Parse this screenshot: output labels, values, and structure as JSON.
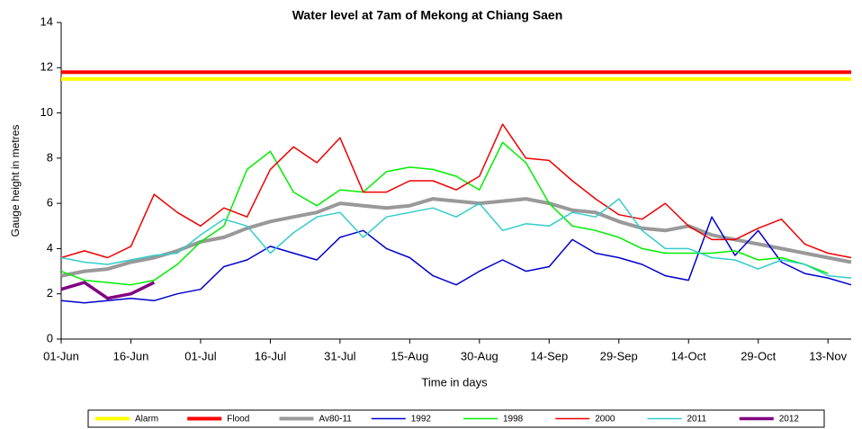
{
  "chart_data": {
    "type": "line",
    "title": "Water level at 7am of Mekong at Chiang Saen",
    "y_label": "Gauge height in metres",
    "x_label": "Time in days",
    "categories": [
      "01-Jun",
      null,
      null,
      "16-Jun",
      null,
      null,
      "01-Jul",
      null,
      null,
      "16-Jul",
      null,
      null,
      "31-Jul",
      null,
      null,
      "15-Aug",
      null,
      null,
      "30-Aug",
      null,
      null,
      "14-Sep",
      null,
      null,
      "29-Sep",
      null,
      null,
      "14-Oct",
      null,
      null,
      "29-Oct",
      null,
      null,
      "13-Nov",
      null
    ],
    "ylim": [
      0,
      14
    ],
    "yticks": [
      0,
      2,
      4,
      6,
      8,
      10,
      12,
      14
    ],
    "grid": false,
    "legend": "bottom",
    "series": [
      {
        "name": "Alarm",
        "color": "#ffff00",
        "values": [
          11.5,
          11.5,
          11.5,
          11.5,
          11.5,
          11.5,
          11.5,
          11.5,
          11.5,
          11.5,
          11.5,
          11.5,
          11.5,
          11.5,
          11.5,
          11.5,
          11.5,
          11.5,
          11.5,
          11.5,
          11.5,
          11.5,
          11.5,
          11.5,
          11.5,
          11.5,
          11.5,
          11.5,
          11.5,
          11.5,
          11.5,
          11.5,
          11.5,
          11.5,
          11.5
        ]
      },
      {
        "name": "Flood",
        "color": "#ff0000",
        "values": [
          11.8,
          11.8,
          11.8,
          11.8,
          11.8,
          11.8,
          11.8,
          11.8,
          11.8,
          11.8,
          11.8,
          11.8,
          11.8,
          11.8,
          11.8,
          11.8,
          11.8,
          11.8,
          11.8,
          11.8,
          11.8,
          11.8,
          11.8,
          11.8,
          11.8,
          11.8,
          11.8,
          11.8,
          11.8,
          11.8,
          11.8,
          11.8,
          11.8,
          11.8,
          11.8
        ]
      },
      {
        "name": "Av80-11",
        "color": "#999999",
        "values": [
          2.8,
          3.0,
          3.1,
          3.4,
          3.6,
          3.9,
          4.3,
          4.5,
          4.9,
          5.2,
          5.4,
          5.6,
          6.0,
          5.9,
          5.8,
          5.9,
          6.2,
          6.1,
          6.0,
          6.1,
          6.2,
          6.0,
          5.7,
          5.6,
          5.2,
          4.9,
          4.8,
          5.0,
          4.6,
          4.4,
          4.2,
          4.0,
          3.8,
          3.6,
          3.4
        ]
      },
      {
        "name": "1992",
        "color": "#0000cc",
        "values": [
          1.7,
          1.6,
          1.7,
          1.8,
          1.7,
          2.0,
          2.2,
          3.2,
          3.5,
          4.1,
          3.8,
          3.5,
          4.5,
          4.8,
          4.0,
          3.6,
          2.8,
          2.4,
          3.0,
          3.5,
          3.0,
          3.2,
          4.4,
          3.8,
          3.6,
          3.3,
          2.8,
          2.6,
          5.4,
          3.7,
          4.8,
          3.4,
          2.9,
          2.7,
          2.4
        ]
      },
      {
        "name": "1998",
        "color": "#00ee00",
        "values": [
          3.0,
          2.6,
          2.5,
          2.4,
          2.6,
          3.3,
          4.3,
          5.0,
          7.5,
          8.3,
          6.5,
          5.9,
          6.6,
          6.5,
          7.4,
          7.6,
          7.5,
          7.2,
          6.6,
          8.7,
          7.8,
          6.0,
          5.0,
          4.8,
          4.5,
          4.0,
          3.8,
          3.8,
          3.8,
          3.9,
          3.5,
          3.6,
          3.3,
          2.9,
          null
        ]
      },
      {
        "name": "2000",
        "color": "#ee0000",
        "values": [
          3.6,
          3.9,
          3.6,
          4.1,
          6.4,
          5.6,
          5.0,
          5.8,
          5.4,
          7.5,
          8.5,
          7.8,
          8.9,
          6.5,
          6.5,
          7.0,
          7.0,
          6.6,
          7.2,
          9.5,
          8.0,
          7.9,
          7.0,
          6.2,
          5.5,
          5.3,
          6.0,
          5.0,
          4.4,
          4.4,
          4.9,
          5.3,
          4.2,
          3.8,
          3.6
        ]
      },
      {
        "name": "2011",
        "color": "#33cccc",
        "values": [
          3.6,
          3.4,
          3.3,
          3.5,
          3.7,
          3.8,
          4.6,
          5.3,
          5.0,
          3.8,
          4.7,
          5.4,
          5.6,
          4.5,
          5.4,
          5.6,
          5.8,
          5.4,
          6.0,
          4.8,
          5.1,
          5.0,
          5.6,
          5.4,
          6.2,
          4.8,
          4.0,
          4.0,
          3.6,
          3.5,
          3.1,
          3.5,
          3.3,
          2.8,
          2.7
        ]
      },
      {
        "name": "2012",
        "color": "#800080",
        "values": [
          2.2,
          2.5,
          1.8,
          2.0,
          2.5,
          null,
          null,
          null,
          null,
          null,
          null,
          null,
          null,
          null,
          null,
          null,
          null,
          null,
          null,
          null,
          null,
          null,
          null,
          null,
          null,
          null,
          null,
          null,
          null,
          null,
          null,
          null,
          null,
          null,
          null
        ]
      }
    ]
  }
}
